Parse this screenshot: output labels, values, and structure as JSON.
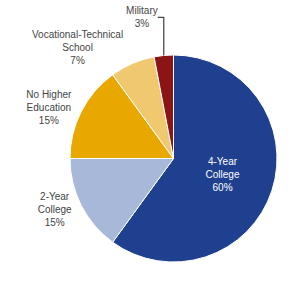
{
  "chart_data": {
    "type": "pie",
    "categories": [
      "4-Year College",
      "2-Year College",
      "No Higher Education",
      "Vocational-Technical School",
      "Military"
    ],
    "values": [
      60,
      15,
      15,
      7,
      3
    ],
    "value_labels": [
      "60%",
      "15%",
      "15%",
      "7%",
      "3%"
    ],
    "colors": [
      "#1F3F8F",
      "#A8B8D8",
      "#E8A800",
      "#F0C870",
      "#8B1515"
    ],
    "data_labels": true
  }
}
